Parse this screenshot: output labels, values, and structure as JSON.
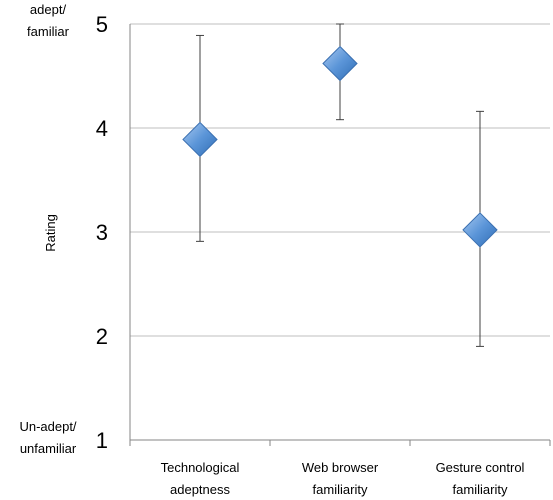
{
  "chart_data": {
    "type": "scatter",
    "title": "",
    "xlabel": "",
    "ylabel": "Rating",
    "ylim": [
      1,
      5
    ],
    "yticks": [
      "1",
      "2",
      "3",
      "4",
      "5"
    ],
    "grid": true,
    "legend": "none",
    "categories": [
      "Technological adeptness",
      "Web browser familiarity",
      "Gesture control familiarity"
    ],
    "category_lines": [
      [
        "Technological",
        "adeptness"
      ],
      [
        "Web browser",
        "familiarity"
      ],
      [
        "Gesture control",
        "familiarity"
      ]
    ],
    "values": [
      3.89,
      4.62,
      3.02
    ],
    "error_low": [
      2.91,
      4.08,
      1.9
    ],
    "error_high": [
      4.89,
      5.0,
      4.16
    ],
    "marker": "diamond",
    "marker_color": "#4f81bd",
    "y_anchor_labels": {
      "top": [
        "adept/",
        "familiar"
      ],
      "bottom": [
        "Un-adept/",
        "unfamiliar"
      ]
    }
  }
}
